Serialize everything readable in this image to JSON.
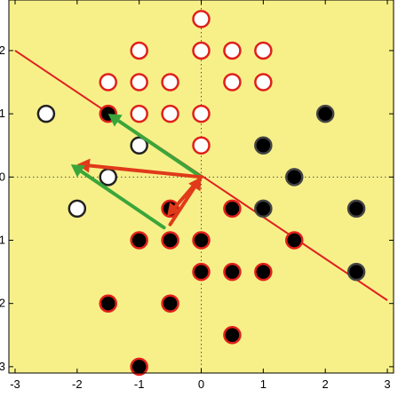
{
  "chart_data": {
    "type": "scatter",
    "title": "",
    "xlabel": "",
    "ylabel": "",
    "xlim": [
      -3.1,
      3.1
    ],
    "ylim": [
      -3.1,
      2.8
    ],
    "grid": "off",
    "x_ticks": [
      -3,
      -2,
      -1,
      0,
      1,
      2,
      3
    ],
    "x_tick_labels": [
      "-3",
      "-2",
      "-1",
      "0",
      "1",
      "2",
      "3"
    ],
    "y_ticks": [
      -3,
      -2,
      -1,
      0,
      1,
      2
    ],
    "y_tick_labels": [
      "-3",
      "-2",
      "-1",
      "0",
      "1",
      "2"
    ],
    "zero_lines": "dotted",
    "colors": {
      "plot_background": "#f7f089",
      "figure_background": "#ffffff",
      "decision_line": "#e02020",
      "marker_edge_red": "#e0201a",
      "green_arrow": "#3aa63a",
      "red_arrow": "#e03a1a"
    },
    "series": [
      {
        "marker": "open-circle-red-edge",
        "points": [
          [
            0,
            2.5
          ],
          [
            -1,
            2
          ],
          [
            0,
            2
          ],
          [
            0.5,
            2
          ],
          [
            1,
            2
          ],
          [
            -1.5,
            1.5
          ],
          [
            -1,
            1.5
          ],
          [
            -0.5,
            1.5
          ],
          [
            0.5,
            1.5
          ],
          [
            1,
            1.5
          ],
          [
            -1,
            1
          ],
          [
            -0.5,
            1
          ],
          [
            0,
            1
          ],
          [
            0,
            0.5
          ]
        ]
      },
      {
        "marker": "filled-circle-red-edge",
        "points": [
          [
            -1.5,
            1
          ],
          [
            -0.5,
            -0.5
          ],
          [
            0.5,
            -0.5
          ],
          [
            -1,
            -1
          ],
          [
            -0.5,
            -1
          ],
          [
            0,
            -1
          ],
          [
            1.5,
            -1
          ],
          [
            0,
            -1.5
          ],
          [
            0.5,
            -1.5
          ],
          [
            1,
            -1.5
          ],
          [
            -1.5,
            -2
          ],
          [
            -0.5,
            -2
          ],
          [
            0.5,
            -2.5
          ],
          [
            -1,
            -3
          ]
        ]
      },
      {
        "marker": "open-circle-black-edge",
        "points": [
          [
            -2.5,
            1
          ],
          [
            -1,
            0.5
          ],
          [
            -1.5,
            0
          ],
          [
            -2,
            -0.5
          ]
        ]
      },
      {
        "marker": "filled-circle-black-edge",
        "points": [
          [
            2,
            1
          ],
          [
            1,
            0.5
          ],
          [
            1.5,
            0
          ],
          [
            1,
            -0.5
          ],
          [
            2.5,
            -0.5
          ],
          [
            2.5,
            -1.5
          ]
        ]
      }
    ],
    "decision_line": {
      "from": [
        -3,
        2
      ],
      "to": [
        3,
        -1.95
      ]
    },
    "arrows": [
      {
        "color_key": "green_arrow",
        "from": [
          0,
          0
        ],
        "to": [
          -1.5,
          1
        ]
      },
      {
        "color_key": "red_arrow",
        "from": [
          0,
          0
        ],
        "to": [
          -2,
          0.2
        ]
      },
      {
        "color_key": "red_arrow",
        "from": [
          -0.5,
          -0.75
        ],
        "to": [
          0,
          0
        ]
      },
      {
        "color_key": "red_arrow",
        "from": [
          0,
          0
        ],
        "to": [
          -0.55,
          -0.62
        ]
      },
      {
        "color_key": "green_arrow",
        "from": [
          -0.6,
          -0.8
        ],
        "to": [
          -2.1,
          0.2
        ]
      }
    ]
  }
}
